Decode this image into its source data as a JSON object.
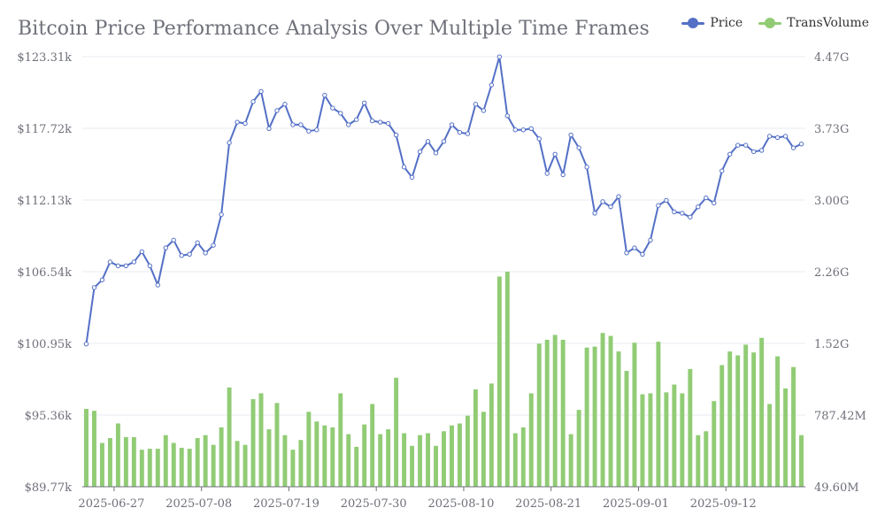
{
  "colors": {
    "price": "#5470c6",
    "volume": "#91cc75",
    "grid": "#e8ebf1",
    "axis": "#6e7079"
  },
  "chart_data": {
    "type": "line+bar",
    "title": "Bitcoin Price Performance Analysis Over Multiple Time Frames",
    "legend": [
      {
        "name": "Price",
        "color": "#5470c6",
        "marker": "line"
      },
      {
        "name": "TransVolume",
        "color": "#91cc75",
        "marker": "bar"
      }
    ],
    "legend_position": "top-right",
    "x_start_date": "2025-06-23",
    "x_tick_labels": [
      "2025-06-27",
      "2025-07-08",
      "2025-07-19",
      "2025-07-30",
      "2025-08-10",
      "2025-08-21",
      "2025-09-01",
      "2025-09-12"
    ],
    "x_tick_indices": [
      4,
      15,
      26,
      37,
      48,
      59,
      70,
      81
    ],
    "y_left": {
      "min": 89770,
      "max": 123310,
      "tick_values": [
        89770,
        95360,
        100950,
        106540,
        112130,
        117720,
        123310
      ],
      "tick_labels": [
        "$89.77k",
        "$95.36k",
        "$100.95k",
        "$106.54k",
        "$112.13k",
        "$117.72k",
        "$123.31k"
      ]
    },
    "y_right": {
      "min": 49.6,
      "max": 4470,
      "unit": "M",
      "tick_values": [
        49.6,
        787.42,
        1520,
        2260,
        3000,
        3730,
        4470
      ],
      "tick_labels": [
        "49.60M",
        "787.42M",
        "1.52G",
        "2.26G",
        "3.00G",
        "3.73G",
        "4.47G"
      ]
    },
    "series": [
      {
        "name": "Price",
        "kind": "line",
        "axis": "left",
        "values": [
          100900,
          105300,
          105900,
          107300,
          107000,
          107000,
          107300,
          108100,
          107000,
          105500,
          108400,
          109000,
          107800,
          107900,
          108800,
          108000,
          108600,
          111000,
          116600,
          118200,
          118100,
          119800,
          120600,
          117700,
          119100,
          119600,
          118000,
          118000,
          117500,
          117600,
          120300,
          119300,
          118900,
          118000,
          118400,
          119700,
          118300,
          118200,
          118100,
          117200,
          114700,
          113900,
          115900,
          116700,
          115800,
          116700,
          118000,
          117400,
          117300,
          119600,
          119100,
          121100,
          123300,
          118700,
          117600,
          117600,
          117700,
          116900,
          114200,
          115700,
          114100,
          117200,
          116200,
          114700,
          111100,
          112000,
          111600,
          112400,
          108000,
          108400,
          107900,
          109000,
          111700,
          112100,
          111200,
          111100,
          110800,
          111600,
          112300,
          111900,
          114400,
          115700,
          116400,
          116400,
          115900,
          116000,
          117100,
          117000,
          117100,
          116200,
          116500
        ],
        "point_size": "small"
      },
      {
        "name": "TransVolume",
        "kind": "bar",
        "axis": "right",
        "values": [
          850,
          830,
          500,
          550,
          700,
          560,
          560,
          430,
          440,
          440,
          580,
          500,
          450,
          440,
          550,
          580,
          480,
          660,
          1070,
          520,
          480,
          950,
          1010,
          640,
          910,
          580,
          430,
          530,
          820,
          720,
          680,
          660,
          1010,
          590,
          460,
          690,
          900,
          590,
          640,
          1170,
          600,
          470,
          580,
          600,
          470,
          620,
          680,
          700,
          780,
          1050,
          820,
          1110,
          2210,
          2260,
          600,
          660,
          1010,
          1520,
          1560,
          1610,
          1560,
          590,
          840,
          1480,
          1490,
          1630,
          1600,
          1440,
          1240,
          1530,
          1000,
          1010,
          1540,
          1020,
          1100,
          1010,
          1260,
          580,
          620,
          930,
          1300,
          1440,
          1400,
          1510,
          1430,
          1580,
          900,
          1390,
          1060,
          1280,
          580
        ]
      }
    ]
  }
}
